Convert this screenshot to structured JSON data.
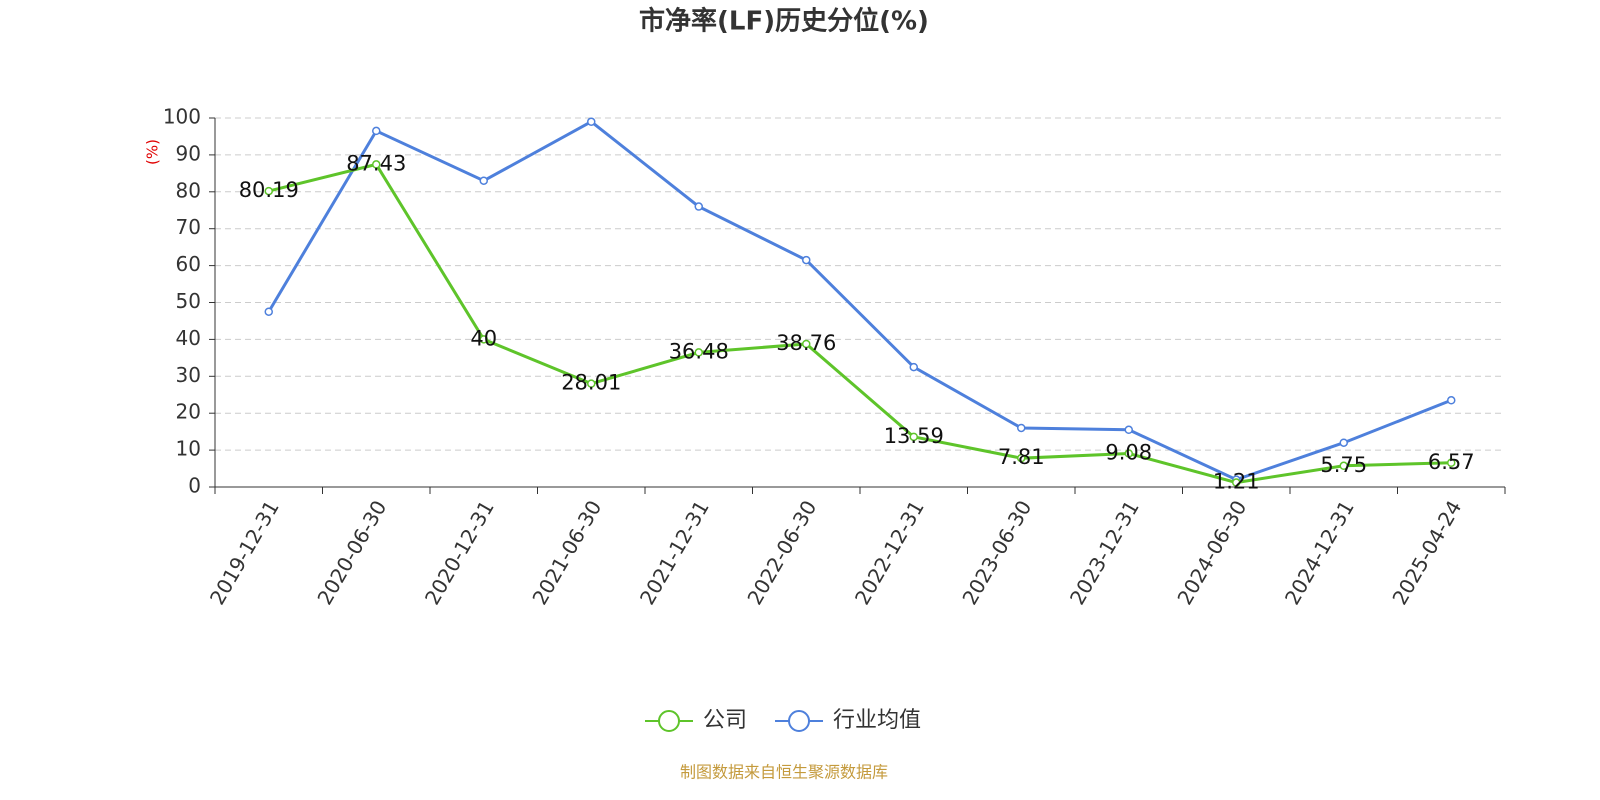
{
  "chart_data": {
    "type": "line",
    "title": "市净率(LF)历史分位(%)",
    "y_label": "(%)",
    "categories": [
      "2019-12-31",
      "2020-06-30",
      "2020-12-31",
      "2021-06-30",
      "2021-12-31",
      "2022-06-30",
      "2022-12-31",
      "2023-06-30",
      "2023-12-31",
      "2024-06-30",
      "2024-12-31",
      "2025-04-24"
    ],
    "series": [
      {
        "name": "公司",
        "color": "#5ec42a",
        "values": [
          80.19,
          87.43,
          40,
          28.01,
          36.48,
          38.76,
          13.59,
          7.81,
          9.08,
          1.21,
          5.75,
          6.57
        ],
        "show_labels": true
      },
      {
        "name": "行业均值",
        "color": "#4e80dc",
        "values": [
          47.5,
          96.5,
          83,
          99,
          76,
          61.5,
          32.5,
          16,
          15.5,
          2,
          12,
          23.5
        ],
        "show_labels": false
      }
    ],
    "ylim": [
      0,
      100
    ],
    "yticks": [
      0,
      10,
      20,
      30,
      40,
      50,
      60,
      70,
      80,
      90,
      100
    ],
    "grid": true,
    "legend": "bottom",
    "source": "制图数据来自恒生聚源数据库"
  }
}
